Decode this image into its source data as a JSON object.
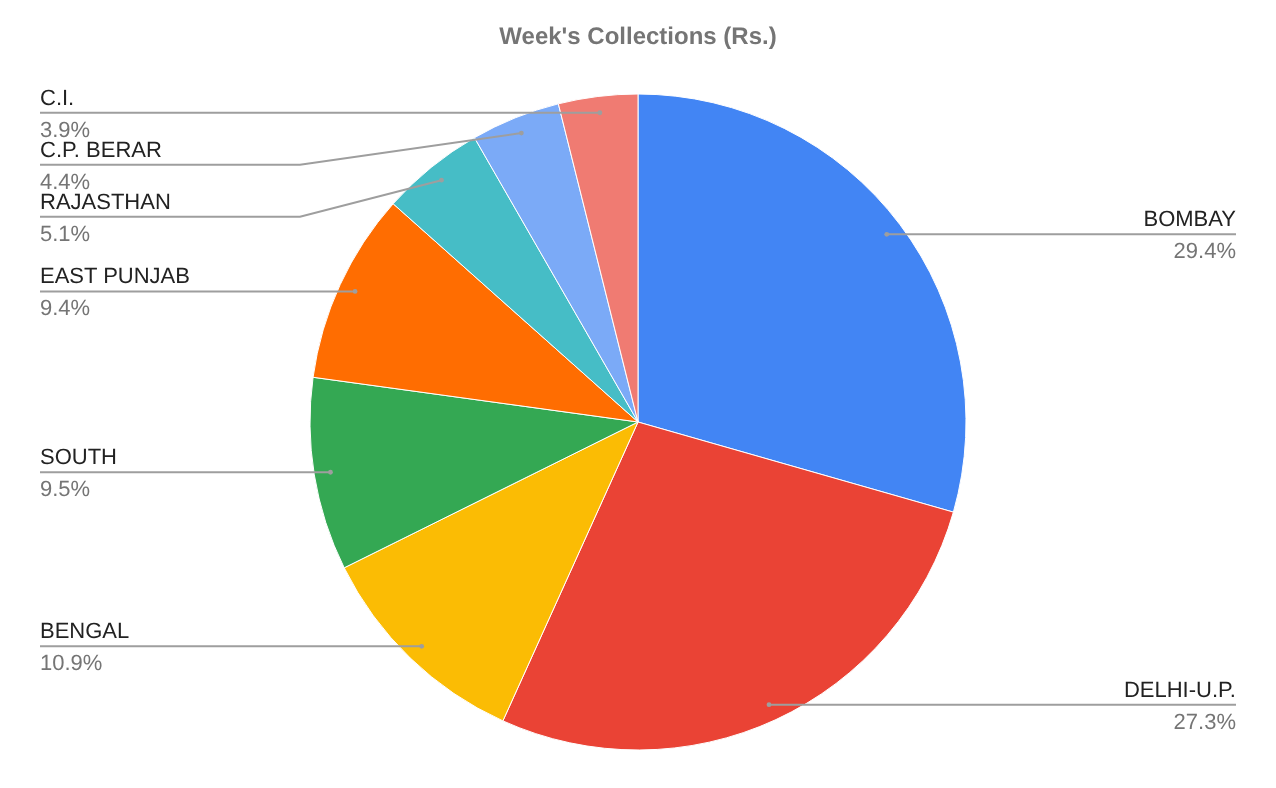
{
  "chart_data": {
    "type": "pie",
    "title": "Week's Collections (Rs.)",
    "categories": [
      "BOMBAY",
      "DELHI-U.P.",
      "BENGAL",
      "SOUTH",
      "EAST PUNJAB",
      "RAJASTHAN",
      "C.P. BERAR",
      "C.I."
    ],
    "values": [
      29.4,
      27.3,
      10.9,
      9.5,
      9.4,
      5.1,
      4.4,
      3.9
    ],
    "colors": [
      "#4285f4",
      "#ea4335",
      "#fbbc04",
      "#34a853",
      "#ff6d01",
      "#46bdc6",
      "#7baaf7",
      "#f07b72"
    ],
    "value_labels": [
      "29.4%",
      "27.3%",
      "10.9%",
      "9.5%",
      "9.4%",
      "5.1%",
      "4.4%",
      "3.9%"
    ]
  }
}
